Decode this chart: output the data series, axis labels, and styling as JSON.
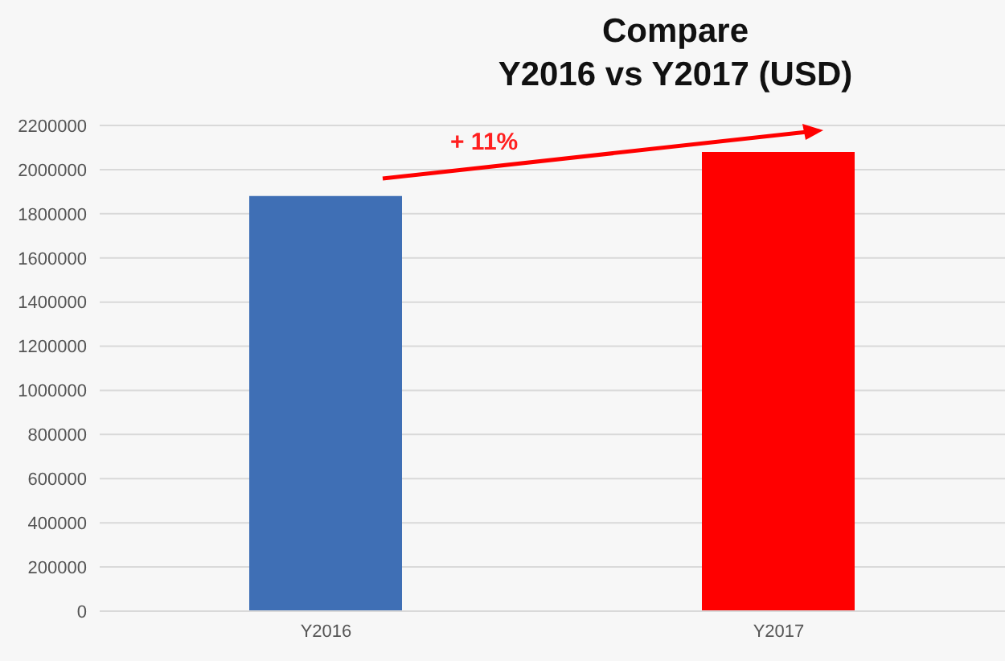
{
  "chart_data": {
    "type": "bar",
    "title": "Compare\nY2016 vs Y2017 (USD)",
    "categories": [
      "Y2016",
      "Y2017"
    ],
    "values": [
      1880000,
      2080000
    ],
    "colors": [
      "#3f6fb5",
      "#ff0000"
    ],
    "ylim": [
      0,
      2200000
    ],
    "yticks": [
      0,
      200000,
      400000,
      600000,
      800000,
      1000000,
      1200000,
      1400000,
      1600000,
      1800000,
      2000000,
      2200000
    ],
    "grid": "y",
    "legend": false,
    "annotations": [
      "+ 11%"
    ]
  }
}
